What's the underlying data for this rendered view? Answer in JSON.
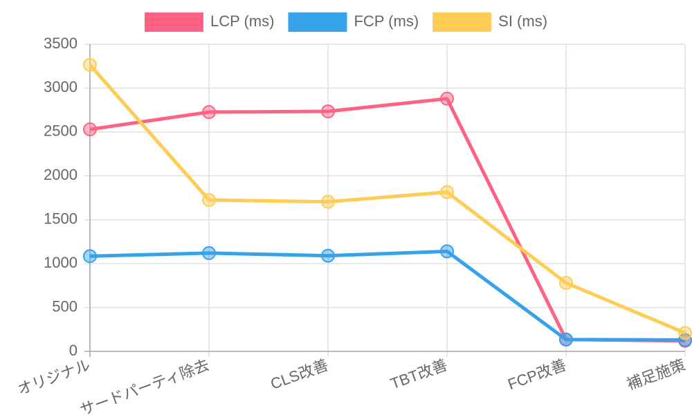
{
  "chart_data": {
    "type": "line",
    "categories": [
      "オリジナル",
      "サードパーティ除去",
      "CLS改善",
      "TBT改善",
      "FCP改善",
      "補足施策"
    ],
    "series": [
      {
        "name": "LCP (ms)",
        "color": "#ff6384",
        "values": [
          2530,
          2727,
          2735,
          2880,
          135,
          120
        ]
      },
      {
        "name": "FCP (ms)",
        "color": "#36a2eb",
        "values": [
          1085,
          1120,
          1090,
          1140,
          135,
          130
        ]
      },
      {
        "name": "SI (ms)",
        "color": "#ffcd56",
        "values": [
          3265,
          1725,
          1705,
          1815,
          780,
          210
        ]
      }
    ],
    "ylim": [
      0,
      3500
    ],
    "yticks": [
      0,
      500,
      1000,
      1500,
      2000,
      2500,
      3000,
      3500
    ],
    "grid": true,
    "legend": "top"
  }
}
